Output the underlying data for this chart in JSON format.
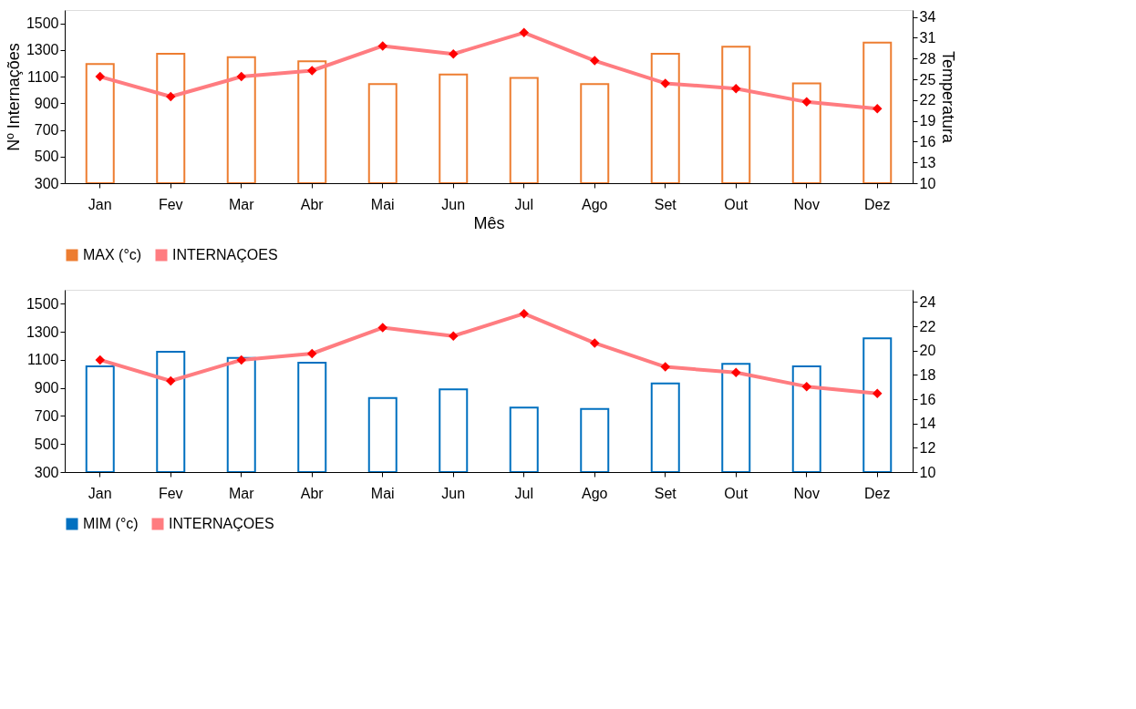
{
  "chart_data": [
    {
      "type": "bar",
      "xlabel": "Mês",
      "ylabel": "Nº Internações",
      "y2label": "Temperatura",
      "categories": [
        "Jan",
        "Fev",
        "Mar",
        "Abr",
        "Mai",
        "Jun",
        "Jul",
        "Ago",
        "Set",
        "Out",
        "Nov",
        "Dez"
      ],
      "series": [
        {
          "name": "MAX (°c)",
          "axis": "y2",
          "color": "#ed7d31",
          "values": [
            27.2,
            28.7,
            28.2,
            27.6,
            24.3,
            25.7,
            25.2,
            24.3,
            28.7,
            29.7,
            24.4,
            30.3
          ]
        },
        {
          "name": "INTERNAÇOES",
          "type": "line",
          "axis": "y",
          "color": "#ff7c80",
          "marker": "diamond",
          "values": [
            1100,
            950,
            1100,
            1145,
            1330,
            1270,
            1430,
            1220,
            1050,
            1010,
            910,
            860
          ]
        }
      ],
      "ylim": [
        300,
        1600
      ],
      "yticks": [
        300,
        500,
        700,
        900,
        1100,
        1300,
        1500
      ],
      "y2lim": [
        10,
        35
      ],
      "y2ticks": [
        10,
        13,
        16,
        19,
        22,
        25,
        28,
        31,
        34
      ],
      "grid": false,
      "legend": "bottom"
    },
    {
      "type": "bar",
      "categories": [
        "Jan",
        "Fev",
        "Mar",
        "Abr",
        "Mai",
        "Jun",
        "Jul",
        "Ago",
        "Set",
        "Out",
        "Nov",
        "Dez"
      ],
      "series": [
        {
          "name": "MIM (°c)",
          "axis": "y2",
          "color": "#0070c0",
          "values": [
            18.7,
            19.9,
            19.4,
            19.0,
            16.1,
            16.8,
            15.3,
            15.2,
            17.3,
            18.9,
            18.7,
            21.0
          ]
        },
        {
          "name": "INTERNAÇOES",
          "type": "line",
          "axis": "y",
          "color": "#ff7c80",
          "marker": "diamond",
          "values": [
            1100,
            950,
            1100,
            1145,
            1330,
            1270,
            1430,
            1220,
            1050,
            1010,
            910,
            860
          ]
        }
      ],
      "ylim": [
        300,
        1600
      ],
      "yticks": [
        300,
        500,
        700,
        900,
        1100,
        1300,
        1500
      ],
      "y2lim": [
        10,
        25
      ],
      "y2ticks": [
        10,
        12,
        14,
        16,
        18,
        20,
        22,
        24
      ],
      "grid": false,
      "legend": "bottom"
    }
  ]
}
